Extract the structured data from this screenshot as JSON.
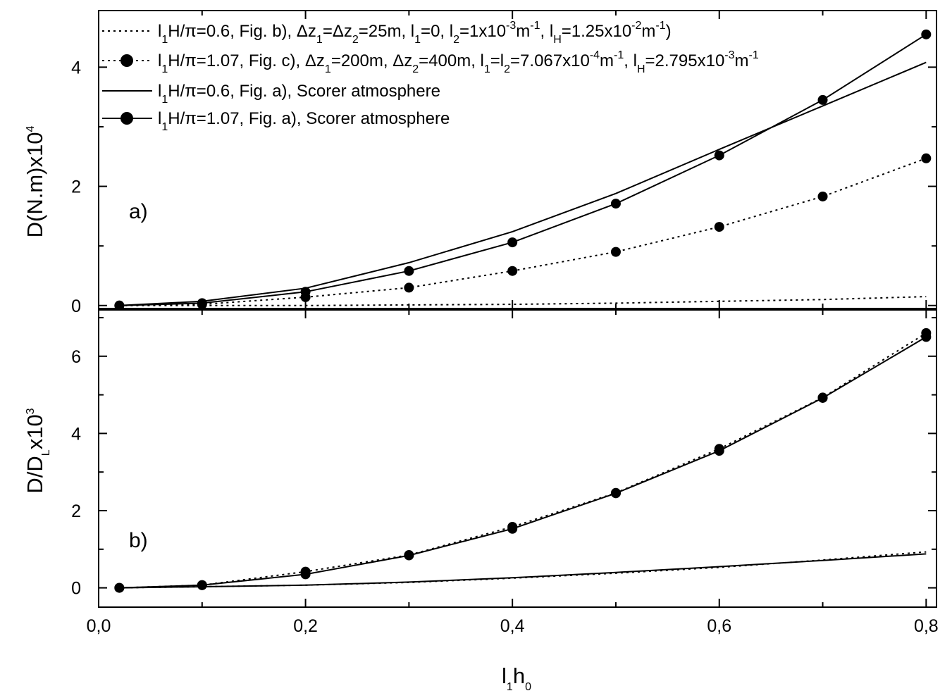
{
  "chart_data": [
    {
      "type": "line",
      "panel_label": "a)",
      "ylabel": {
        "main": "D(N.m)x10",
        "sup": "4"
      },
      "x": [
        0.02,
        0.1,
        0.2,
        0.3,
        0.4,
        0.5,
        0.6,
        0.7,
        0.8
      ],
      "xlim": [
        0.0,
        0.81
      ],
      "ylim": [
        -0.05,
        4.95
      ],
      "yticks": [
        0,
        2,
        4
      ],
      "yticks_minor": [
        1,
        3
      ],
      "yticklabels": [
        "0",
        "2",
        "4"
      ],
      "series": [
        {
          "style": "dotted",
          "markers": false,
          "values": [
            0,
            0.0,
            0.0,
            0.01,
            0.02,
            0.04,
            0.07,
            0.1,
            0.15
          ]
        },
        {
          "style": "dotted",
          "markers": true,
          "values": [
            0,
            0.02,
            0.14,
            0.3,
            0.58,
            0.9,
            1.32,
            1.83,
            2.47
          ]
        },
        {
          "style": "solid",
          "markers": false,
          "values": [
            0,
            0.07,
            0.29,
            0.72,
            1.24,
            1.88,
            2.62,
            3.35,
            4.08
          ]
        },
        {
          "style": "solid",
          "markers": true,
          "values": [
            0,
            0.04,
            0.23,
            0.58,
            1.06,
            1.71,
            2.52,
            3.45,
            4.55
          ]
        }
      ]
    },
    {
      "type": "line",
      "panel_label": "b)",
      "ylabel": {
        "main": "D/D",
        "sub": "L",
        "rest": "x10",
        "sup": "3"
      },
      "xlabel": {
        "a": "l",
        "a_sub": "1",
        "b": "h",
        "b_sub": "0"
      },
      "x": [
        0.02,
        0.1,
        0.2,
        0.3,
        0.4,
        0.5,
        0.6,
        0.7,
        0.8
      ],
      "xlim": [
        0.0,
        0.81
      ],
      "xticks": [
        0.0,
        0.2,
        0.4,
        0.6,
        0.8
      ],
      "xticks_minor": [
        0.1,
        0.3,
        0.5,
        0.7
      ],
      "xticklabels": [
        "0,0",
        "0,2",
        "0,4",
        "0,6",
        "0,8"
      ],
      "ylim": [
        -0.5,
        7.2
      ],
      "yticks": [
        0,
        2,
        4,
        6
      ],
      "yticks_minor": [
        1,
        3,
        5,
        7
      ],
      "yticklabels": [
        "0",
        "2",
        "4",
        "6"
      ],
      "series": [
        {
          "style": "dotted",
          "markers": false,
          "values": [
            0,
            0.03,
            0.07,
            0.14,
            0.25,
            0.38,
            0.53,
            0.72,
            0.93
          ]
        },
        {
          "style": "dotted",
          "markers": true,
          "values": [
            0,
            0.07,
            0.42,
            0.85,
            1.58,
            2.46,
            3.6,
            4.93,
            6.6
          ]
        },
        {
          "style": "solid",
          "markers": false,
          "values": [
            0,
            0.03,
            0.07,
            0.15,
            0.26,
            0.4,
            0.55,
            0.71,
            0.88
          ]
        },
        {
          "style": "solid",
          "markers": true,
          "values": [
            0,
            0.07,
            0.35,
            0.84,
            1.53,
            2.45,
            3.55,
            4.92,
            6.5
          ]
        }
      ]
    }
  ],
  "legend": [
    {
      "style": "dotted",
      "markers": false,
      "parts": [
        [
          "l",
          ""
        ],
        [
          "1",
          "sub"
        ],
        [
          "H/π=0.6,   Fig. b), Δz",
          ""
        ],
        [
          "1",
          "sub"
        ],
        [
          "=Δz",
          ""
        ],
        [
          "2",
          "sub"
        ],
        [
          "=25m, l",
          ""
        ],
        [
          "1",
          "sub"
        ],
        [
          "=0, l",
          ""
        ],
        [
          "2",
          "sub"
        ],
        [
          "=1x10",
          ""
        ],
        [
          "-3",
          "sup"
        ],
        [
          "m",
          ""
        ],
        [
          "-1",
          "sup"
        ],
        [
          ", l",
          ""
        ],
        [
          "H",
          "sub"
        ],
        [
          "=1.25x10",
          ""
        ],
        [
          "-2",
          "sup"
        ],
        [
          "m",
          ""
        ],
        [
          "-1",
          "sup"
        ],
        [
          ")",
          ""
        ]
      ]
    },
    {
      "style": "dotted",
      "markers": true,
      "parts": [
        [
          "l",
          ""
        ],
        [
          "1",
          "sub"
        ],
        [
          "H/π=1.07, Fig. c), Δz",
          ""
        ],
        [
          "1",
          "sub"
        ],
        [
          "=200m, Δz",
          ""
        ],
        [
          "2",
          "sub"
        ],
        [
          "=400m, l",
          ""
        ],
        [
          "1",
          "sub"
        ],
        [
          "=l",
          ""
        ],
        [
          "2",
          "sub"
        ],
        [
          "=7.067x10",
          ""
        ],
        [
          "-4",
          "sup"
        ],
        [
          "m",
          ""
        ],
        [
          "-1",
          "sup"
        ],
        [
          ", l",
          ""
        ],
        [
          "H",
          "sub"
        ],
        [
          "=2.795x10",
          ""
        ],
        [
          "-3",
          "sup"
        ],
        [
          "m",
          ""
        ],
        [
          "-1",
          "sup"
        ]
      ]
    },
    {
      "style": "solid",
      "markers": false,
      "parts": [
        [
          "l",
          ""
        ],
        [
          "1",
          "sub"
        ],
        [
          "H/π=0.6,   Fig. a), Scorer atmosphere",
          ""
        ]
      ]
    },
    {
      "style": "solid",
      "markers": true,
      "parts": [
        [
          "l",
          ""
        ],
        [
          "1",
          "sub"
        ],
        [
          "H/π=1.07, Fig. a), Scorer atmosphere",
          ""
        ]
      ]
    }
  ]
}
